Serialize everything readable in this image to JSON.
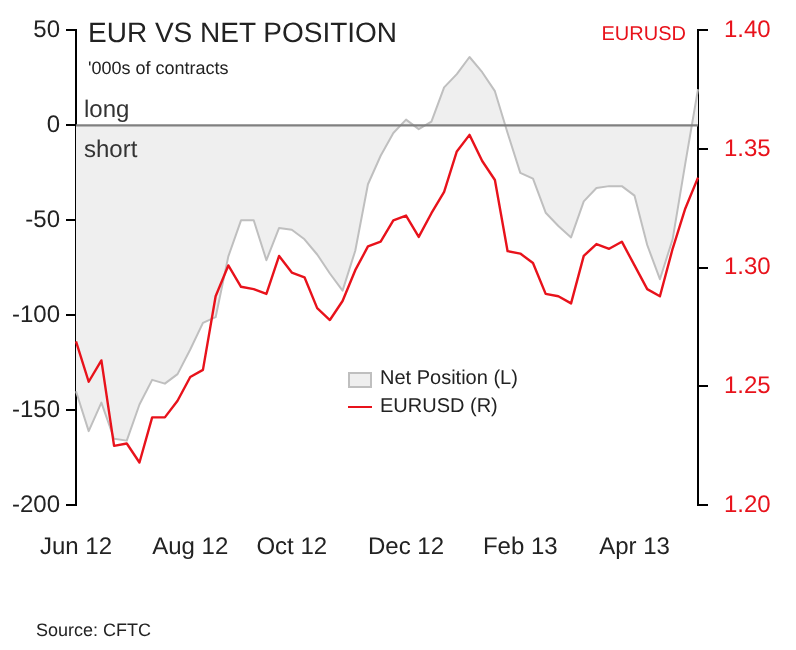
{
  "chart_data": {
    "type": "line",
    "title": "EUR VS NET POSITION",
    "subtitle": "'000s of contracts",
    "y2label": "EURUSD",
    "categories": [
      "Jun 12",
      null,
      null,
      null,
      null,
      null,
      null,
      null,
      null,
      "Aug 12",
      null,
      null,
      null,
      null,
      null,
      null,
      null,
      "Oct 12",
      null,
      null,
      null,
      null,
      null,
      null,
      null,
      null,
      "Dec 12",
      null,
      null,
      null,
      null,
      null,
      null,
      null,
      null,
      "Feb 13",
      null,
      null,
      null,
      null,
      null,
      null,
      null,
      null,
      "Apr 13",
      null,
      null,
      null,
      null,
      null
    ],
    "series": [
      {
        "name": "Net Position (L)",
        "type": "area",
        "color": "#bfbfbf",
        "values": [
          -140,
          -161,
          -146,
          -165,
          -166,
          -147,
          -134,
          -136,
          -131,
          -118,
          -104,
          -101,
          -69,
          -50,
          -50,
          -71,
          -54,
          -55,
          -60,
          -68,
          -78,
          -87,
          -66,
          -31,
          -16,
          -4,
          3,
          -2,
          2,
          20,
          27,
          36,
          28,
          18,
          -4,
          -25,
          -28,
          -46,
          -53,
          -59,
          -40,
          -33,
          -32,
          -32,
          -37,
          -63,
          -81,
          -60,
          -20,
          19
        ]
      },
      {
        "name": "EURUSD (R)",
        "axis": "y2",
        "color": "#e8121b",
        "values": [
          1.269,
          1.252,
          1.261,
          1.225,
          1.226,
          1.218,
          1.237,
          1.237,
          1.244,
          1.254,
          1.257,
          1.288,
          1.301,
          1.292,
          1.291,
          1.289,
          1.305,
          1.298,
          1.296,
          1.283,
          1.278,
          1.286,
          1.299,
          1.309,
          1.311,
          1.32,
          1.322,
          1.313,
          1.323,
          1.332,
          1.349,
          1.356,
          1.345,
          1.337,
          1.307,
          1.306,
          1.302,
          1.289,
          1.288,
          1.285,
          1.305,
          1.31,
          1.308,
          1.311,
          1.301,
          1.291,
          1.288,
          1.308,
          1.325,
          1.338
        ]
      }
    ],
    "ylim": [
      -200,
      50
    ],
    "yticks": [
      -200,
      -150,
      -100,
      -50,
      0,
      50
    ],
    "y2lim": [
      1.2,
      1.4
    ],
    "y2ticks": [
      {
        "value": 1.2,
        "label": "1.20"
      },
      {
        "value": 1.25,
        "label": "1.25"
      },
      {
        "value": 1.3,
        "label": "1.30"
      },
      {
        "value": 1.35,
        "label": "1.35"
      },
      {
        "value": 1.4,
        "label": "1.40"
      }
    ],
    "ref_lines": [
      {
        "axis": "y",
        "value": 0,
        "color": "#808080"
      }
    ],
    "annotations": [
      "long",
      "short",
      "Source: CFTC"
    ],
    "grid": false,
    "legend": "bottom right",
    "marker": "none",
    "line_style": "solid"
  }
}
